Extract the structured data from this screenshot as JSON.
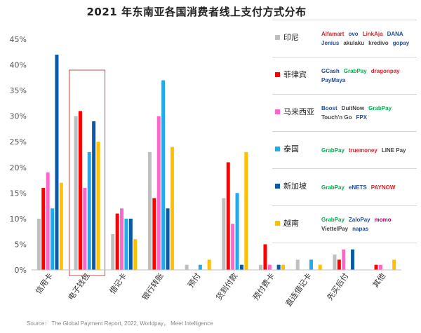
{
  "title": "2021 年东南亚各国消费者线上支付方式分布",
  "source": "Source： The Global Payment Report, 2022, Worldpay， Meet Intelligence",
  "colors": {
    "印尼": "#bfbfbf",
    "菲律宾": "#ff0000",
    "马来西亚": "#ff66cc",
    "泰国": "#22aaee",
    "新加坡": "#0a5aa8",
    "越南": "#ffc000",
    "highlight": "#c0504d",
    "axis": "#bfbfbf"
  },
  "legend": [
    {
      "name": "印尼",
      "brands": [
        "Alfamart",
        "ovo",
        "LinkAja",
        "DANA",
        "Jenius",
        "akulaku",
        "kredivo",
        "gopay"
      ]
    },
    {
      "name": "菲律宾",
      "brands": [
        "GCash",
        "GrabPay",
        "dragonpay",
        "PayMaya"
      ]
    },
    {
      "name": "马来西亚",
      "brands": [
        "Boost",
        "DuitNow",
        "GrabPay",
        "Touch'n Go",
        "FPX"
      ]
    },
    {
      "name": "泰国",
      "brands": [
        "GrabPay",
        "truemoney",
        "LINE Pay"
      ]
    },
    {
      "name": "新加坡",
      "brands": [
        "GrabPay",
        "eNETS",
        "PAYNOW"
      ]
    },
    {
      "name": "越南",
      "brands": [
        "GrabPay",
        "ZaloPay",
        "momo",
        "ViettelPay",
        "napas"
      ]
    }
  ],
  "chart_data": {
    "type": "bar",
    "title": "2021 年东南亚各国消费者线上支付方式分布",
    "categories": [
      "信用卡",
      "电子钱包",
      "借记卡",
      "银行转账",
      "预付",
      "货到付款",
      "预付费卡",
      "直连借记卡",
      "先买后付",
      "其他"
    ],
    "yticks": [
      "0%",
      "5%",
      "10%",
      "15%",
      "20%",
      "25%",
      "30%",
      "35%",
      "40%",
      "45%"
    ],
    "ylim": [
      0,
      45
    ],
    "highlight_category": "电子钱包",
    "grid": false,
    "legend_position": "right",
    "series": [
      {
        "name": "印尼",
        "values": [
          10,
          30,
          7,
          23,
          1,
          14,
          1,
          2,
          3,
          0
        ]
      },
      {
        "name": "菲律宾",
        "values": [
          16,
          31,
          11,
          14,
          0,
          21,
          5,
          0,
          2,
          1
        ]
      },
      {
        "name": "马来西亚",
        "values": [
          19,
          16,
          12,
          30,
          0,
          9,
          1,
          0,
          4,
          1
        ]
      },
      {
        "name": "泰国",
        "values": [
          12,
          23,
          10,
          37,
          1,
          15,
          0,
          2,
          0,
          0
        ]
      },
      {
        "name": "新加坡",
        "values": [
          42,
          29,
          10,
          12,
          0,
          1,
          1,
          0,
          4,
          0
        ]
      },
      {
        "name": "越南",
        "values": [
          17,
          25,
          6,
          24,
          2,
          23,
          1,
          1,
          0,
          2
        ]
      }
    ]
  }
}
